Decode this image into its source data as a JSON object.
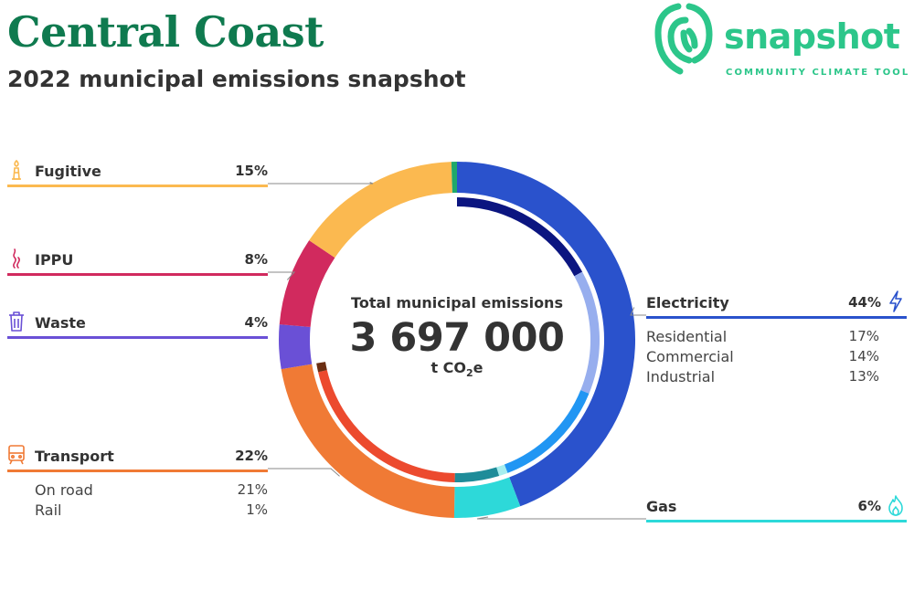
{
  "header": {
    "title": "Central Coast",
    "subtitle": "2022 municipal emissions snapshot"
  },
  "brand": {
    "name": "snapshot",
    "tagline": "COMMUNITY CLIMATE TOOL",
    "color": "#2cc68a"
  },
  "chart_data": {
    "type": "pie",
    "title": "Total municipal emissions",
    "total": "3 697 000",
    "unit_main": "t CO",
    "unit_sub": "2",
    "unit_tail": "e",
    "sectors": [
      {
        "name": "Electricity",
        "pct_label": "44%",
        "value": 44,
        "color": "#2a52cc",
        "icon": "lightning-icon",
        "sub": [
          {
            "name": "Residential",
            "pct_label": "17%",
            "value": 17,
            "color": "#0b1580"
          },
          {
            "name": "Commercial",
            "pct_label": "14%",
            "value": 14,
            "color": "#97aeee"
          },
          {
            "name": "Industrial",
            "pct_label": "13%",
            "value": 13,
            "color": "#2196f3"
          }
        ]
      },
      {
        "name": "Gas",
        "pct_label": "6%",
        "value": 6,
        "color": "#2dd9d9",
        "icon": "flame-icon",
        "sub": [
          {
            "name": "",
            "value": 1,
            "color": "#a6eeee"
          },
          {
            "name": "",
            "value": 5,
            "color": "#1e8c99"
          }
        ]
      },
      {
        "name": "Transport",
        "pct_label": "22%",
        "value": 22,
        "color": "#f07a35",
        "icon": "train-icon",
        "sub": [
          {
            "name": "On road",
            "pct_label": "21%",
            "value": 21,
            "color": "#ec4a2e"
          },
          {
            "name": "Rail",
            "pct_label": "1%",
            "value": 1,
            "color": "#6b2e12"
          }
        ]
      },
      {
        "name": "Waste",
        "pct_label": "4%",
        "value": 4,
        "color": "#6a50d6",
        "icon": "bin-icon"
      },
      {
        "name": "IPPU",
        "pct_label": "8%",
        "value": 8,
        "color": "#d12a5e",
        "icon": "smoke-icon"
      },
      {
        "name": "Fugitive",
        "pct_label": "15%",
        "value": 15,
        "color": "#fbb950",
        "icon": "flare-icon"
      },
      {
        "name": "",
        "value": 0.5,
        "color": "#1fa86a"
      }
    ]
  }
}
